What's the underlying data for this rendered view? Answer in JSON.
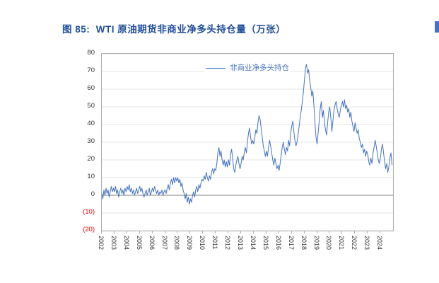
{
  "page": {
    "title": "图 85:  WTI 原油期货非商业净多头持仓量（万张）",
    "title_color": "#1F4E9C",
    "edge_marker_color": "#4472C4",
    "background": "#FFFFFF"
  },
  "chart_data": {
    "type": "line",
    "title": "WTI 原油期货非商业净多头持仓量（万张）",
    "figure_label": "图 85",
    "unit": "万张",
    "grid": "horizontal",
    "legend_position": "top-center-inside",
    "xlim": [
      2002,
      2025
    ],
    "ylim": [
      -20,
      80
    ],
    "line_color": "#4472C4",
    "tick_label_color": "#333333",
    "negative_tick_color": "#FF0000",
    "gridline_color": "#E4E4E4",
    "zero_line_color": "#808080",
    "plot_border_color": "#ACACAC",
    "y_ticks": [
      {
        "value": 80,
        "label": "80",
        "negative": false
      },
      {
        "value": 70,
        "label": "70",
        "negative": false
      },
      {
        "value": 60,
        "label": "60",
        "negative": false
      },
      {
        "value": 50,
        "label": "50",
        "negative": false
      },
      {
        "value": 40,
        "label": "40",
        "negative": false
      },
      {
        "value": 30,
        "label": "30",
        "negative": false
      },
      {
        "value": 20,
        "label": "20",
        "negative": false
      },
      {
        "value": 10,
        "label": "10",
        "negative": false
      },
      {
        "value": 0,
        "label": "0",
        "negative": false
      },
      {
        "value": -10,
        "label": "(10)",
        "negative": true
      },
      {
        "value": -20,
        "label": "(20)",
        "negative": true
      }
    ],
    "x_ticks": [
      "2002",
      "2003",
      "2004",
      "2005",
      "2006",
      "2007",
      "2008",
      "2009",
      "2010",
      "2011",
      "2012",
      "2013",
      "2014",
      "2015",
      "2016",
      "2017",
      "2018",
      "2019",
      "2020",
      "2021",
      "2022",
      "2023",
      "2024"
    ],
    "series": [
      {
        "name": "非商业净多头持仓",
        "start_year": 2002,
        "points_per_year": 12,
        "values": [
          1,
          -2,
          3,
          0,
          4,
          1,
          3,
          -1,
          2,
          5,
          2,
          4,
          2,
          5,
          1,
          3,
          -1,
          2,
          4,
          1,
          3,
          0,
          4,
          2,
          5,
          3,
          6,
          2,
          4,
          1,
          3,
          0,
          2,
          4,
          1,
          3,
          5,
          2,
          4,
          1,
          -1,
          1,
          3,
          0,
          2,
          4,
          0,
          2,
          4,
          2,
          5,
          3,
          1,
          3,
          0,
          2,
          1,
          3,
          0,
          2,
          3,
          1,
          4,
          6,
          3,
          7,
          9,
          6,
          10,
          7,
          10,
          8,
          10,
          7,
          9,
          5,
          7,
          3,
          1,
          -2,
          1,
          -4,
          -1,
          -5,
          -2,
          -4,
          0,
          2,
          -1,
          3,
          5,
          2,
          6,
          4,
          7,
          9,
          8,
          11,
          9,
          13,
          10,
          8,
          11,
          9,
          13,
          15,
          12,
          15,
          14,
          18,
          24,
          27,
          22,
          25,
          20,
          17,
          20,
          16,
          19,
          16,
          20,
          17,
          23,
          26,
          21,
          15,
          13,
          17,
          20,
          22,
          18,
          15,
          18,
          22,
          20,
          24,
          27,
          24,
          30,
          35,
          38,
          33,
          29,
          31,
          29,
          33,
          37,
          35,
          41,
          45,
          43,
          38,
          33,
          28,
          25,
          22,
          25,
          22,
          27,
          31,
          28,
          24,
          20,
          17,
          21,
          18,
          15,
          17,
          14,
          18,
          23,
          27,
          30,
          26,
          23,
          27,
          25,
          31,
          28,
          35,
          39,
          42,
          36,
          31,
          28,
          30,
          34,
          39,
          44,
          48,
          53,
          58,
          65,
          72,
          74,
          69,
          71,
          65,
          61,
          56,
          59,
          51,
          41,
          33,
          29,
          35,
          42,
          49,
          53,
          44,
          48,
          41,
          37,
          34,
          41,
          47,
          50,
          44,
          36,
          42,
          48,
          51,
          53,
          49,
          46,
          44,
          48,
          51,
          53,
          50,
          54,
          49,
          51,
          47,
          49,
          44,
          47,
          42,
          39,
          36,
          41,
          38,
          35,
          37,
          32,
          30,
          27,
          29,
          24,
          26,
          22,
          25,
          23,
          19,
          17,
          21,
          18,
          24,
          27,
          31,
          28,
          24,
          20,
          18,
          21,
          26,
          29,
          24,
          19,
          15,
          18,
          13,
          16,
          21,
          24,
          17
        ]
      }
    ]
  }
}
